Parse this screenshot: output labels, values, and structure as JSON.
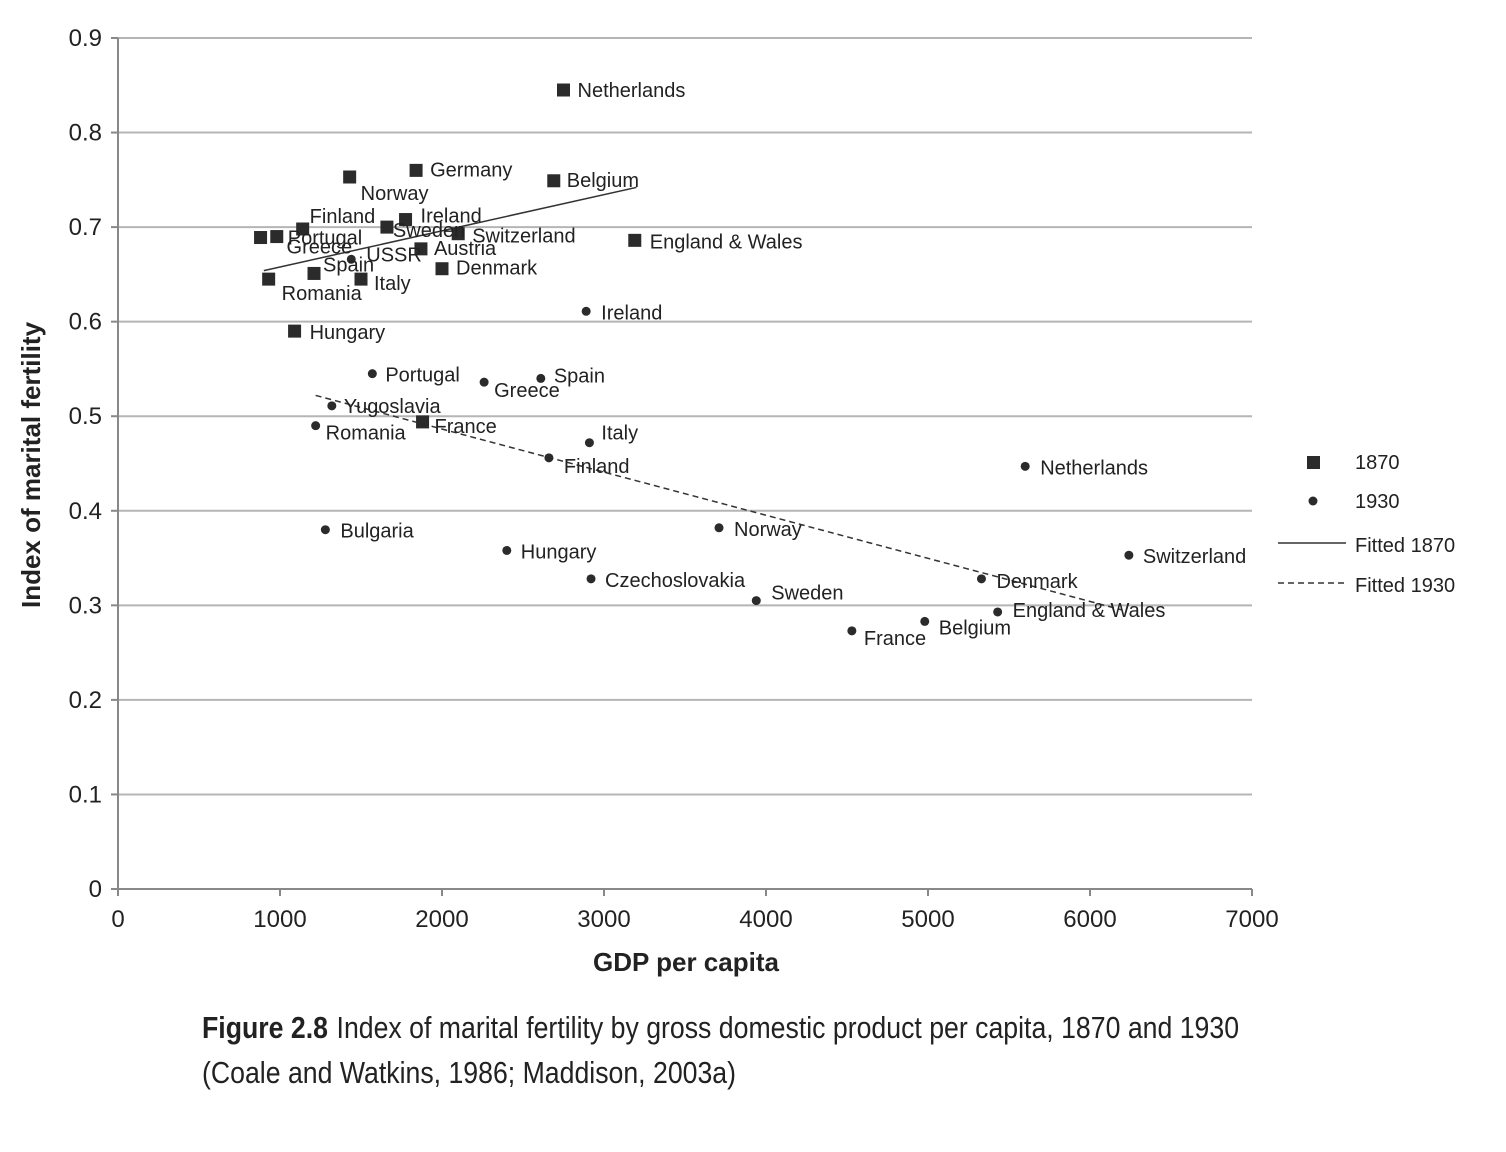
{
  "caption": {
    "figure_number": "Figure 2.8",
    "text": "Index of marital fertility by gross domestic product per capita, 1870 and 1930 (Coale and Watkins, 1986; Maddison, 2003a)"
  },
  "chart_data": {
    "type": "scatter",
    "title": "",
    "xlabel": "GDP per capita",
    "ylabel": "Index of marital fertility",
    "xlim": [
      0,
      7000
    ],
    "ylim": [
      0,
      0.9
    ],
    "xticks": [
      0,
      1000,
      2000,
      3000,
      4000,
      5000,
      6000,
      7000
    ],
    "xtick_labels": [
      "0",
      "1000",
      "2000",
      "3000",
      "4000",
      "5000",
      "6000",
      "7000"
    ],
    "yticks": [
      0,
      0.1,
      0.2,
      0.3,
      0.4,
      0.5,
      0.6,
      0.7,
      0.8,
      0.9
    ],
    "ytick_labels": [
      "0",
      "0.1",
      "0.2",
      "0.3",
      "0.4",
      "0.5",
      "0.6",
      "0.7",
      "0.8",
      "0.9"
    ],
    "grid": "horizontal",
    "legend_position": "right",
    "colors": {
      "marker": "#2b2b2b",
      "grid": "#b5b5b5",
      "axis": "#888888"
    },
    "series": [
      {
        "name": "1870",
        "marker": "square",
        "points": [
          {
            "label": "Netherlands",
            "x": 2750,
            "y": 0.845
          },
          {
            "label": "Germany",
            "x": 1840,
            "y": 0.76
          },
          {
            "label": "Norway",
            "x": 1430,
            "y": 0.753
          },
          {
            "label": "Belgium",
            "x": 2690,
            "y": 0.749
          },
          {
            "label": "Finland",
            "x": 1140,
            "y": 0.698
          },
          {
            "label": "Ireland",
            "x": 1775,
            "y": 0.708
          },
          {
            "label": "Portugal",
            "x": 980,
            "y": 0.69
          },
          {
            "label": "Sweden",
            "x": 1660,
            "y": 0.7
          },
          {
            "label": "Switzerland",
            "x": 2100,
            "y": 0.693
          },
          {
            "label": "Greece",
            "x": 880,
            "y": 0.689
          },
          {
            "label": "England & Wales",
            "x": 3190,
            "y": 0.686
          },
          {
            "label": "Austria",
            "x": 1870,
            "y": 0.677
          },
          {
            "label": "Denmark",
            "x": 2000,
            "y": 0.656
          },
          {
            "label": "Spain",
            "x": 1210,
            "y": 0.651
          },
          {
            "label": "Italy",
            "x": 1500,
            "y": 0.645
          },
          {
            "label": "Romania",
            "x": 930,
            "y": 0.645
          },
          {
            "label": "Hungary",
            "x": 1090,
            "y": 0.59
          },
          {
            "label": "France",
            "x": 1880,
            "y": 0.494
          }
        ]
      },
      {
        "name": "1930",
        "marker": "circle",
        "points": [
          {
            "label": "USSR",
            "x": 1440,
            "y": 0.666
          },
          {
            "label": "Ireland",
            "x": 2890,
            "y": 0.611
          },
          {
            "label": "Portugal",
            "x": 1570,
            "y": 0.545
          },
          {
            "label": "Greece",
            "x": 2260,
            "y": 0.536
          },
          {
            "label": "Spain",
            "x": 2610,
            "y": 0.54
          },
          {
            "label": "Yugoslavia",
            "x": 1320,
            "y": 0.511
          },
          {
            "label": "Romania",
            "x": 1220,
            "y": 0.49
          },
          {
            "label": "Italy",
            "x": 2910,
            "y": 0.472
          },
          {
            "label": "Finland",
            "x": 2660,
            "y": 0.456
          },
          {
            "label": "Netherlands",
            "x": 5600,
            "y": 0.447
          },
          {
            "label": "Bulgaria",
            "x": 1280,
            "y": 0.38
          },
          {
            "label": "Norway",
            "x": 3710,
            "y": 0.382
          },
          {
            "label": "Hungary",
            "x": 2400,
            "y": 0.358
          },
          {
            "label": "Switzerland",
            "x": 6240,
            "y": 0.353
          },
          {
            "label": "Czechoslovakia",
            "x": 2920,
            "y": 0.328
          },
          {
            "label": "Denmark",
            "x": 5330,
            "y": 0.328
          },
          {
            "label": "Sweden",
            "x": 3940,
            "y": 0.305
          },
          {
            "label": "England & Wales",
            "x": 5430,
            "y": 0.293
          },
          {
            "label": "Belgium",
            "x": 4980,
            "y": 0.283
          },
          {
            "label": "France",
            "x": 4530,
            "y": 0.273
          }
        ]
      }
    ],
    "fitted_lines": [
      {
        "name": "Fitted 1870",
        "style": "solid",
        "x": [
          900,
          3200
        ],
        "y": [
          0.654,
          0.742
        ]
      },
      {
        "name": "Fitted 1930",
        "style": "dashed",
        "x": [
          1220,
          6200
        ],
        "y": [
          0.522,
          0.295
        ]
      }
    ],
    "legend": [
      {
        "label": "1870",
        "symbol": "square"
      },
      {
        "label": "1930",
        "symbol": "circle"
      },
      {
        "label": "Fitted 1870",
        "symbol": "solid-line"
      },
      {
        "label": "Fitted 1930",
        "symbol": "dashed-line"
      }
    ]
  }
}
